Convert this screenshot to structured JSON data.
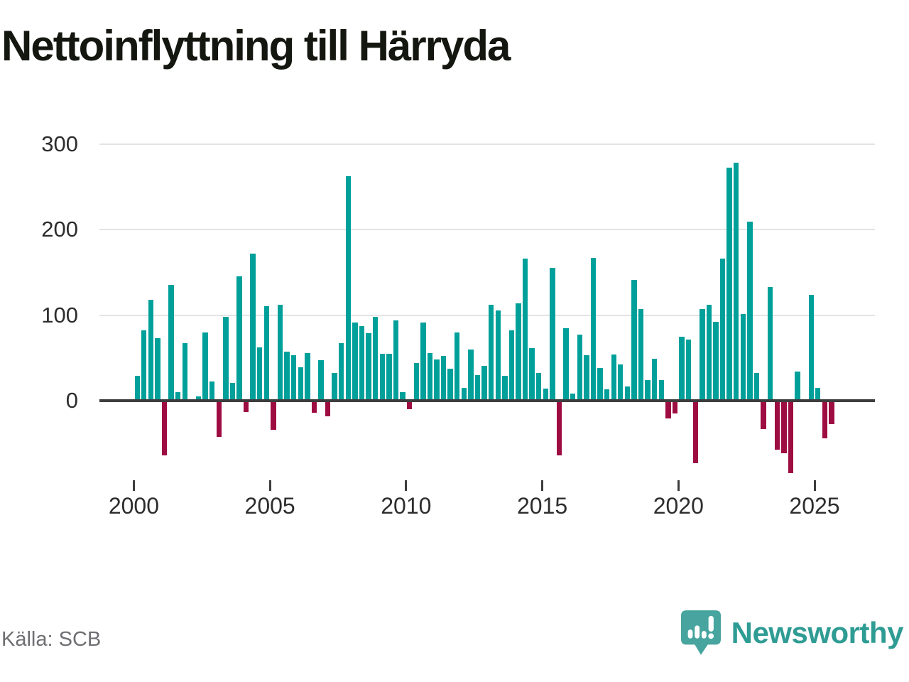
{
  "page": {
    "title": "Nettoinflyttning till Härryda"
  },
  "footer": {
    "source": "Källa: SCB",
    "brand": "Newsworthy"
  },
  "colors": {
    "positive": "#00a09a",
    "negative": "#9e0d41",
    "grid": "#e3e3e3",
    "axis": "#3d3d3d",
    "tick_text": "#2d2d2d",
    "title_text": "#14170f",
    "muted_text": "#6f6f73",
    "brand_teal": "#2f9c94",
    "logo_bg": "#47a49f"
  },
  "chart_data": {
    "type": "bar",
    "title": "Nettoinflyttning till Härryda",
    "xlabel": "",
    "ylabel": "",
    "unit": "personer per kvartal (nettoinflyttning)",
    "frequency": "quarterly",
    "start": "2000-Q1",
    "end": "2025-Q3",
    "y_ticks": [
      0,
      100,
      200,
      300
    ],
    "x_ticks": [
      2000,
      2005,
      2010,
      2015,
      2020,
      2025
    ],
    "ylim": [
      -100,
      310
    ],
    "grid": "horizontal",
    "legend": "none",
    "source": "SCB",
    "series": [
      {
        "name": "Nettoinflyttning",
        "values": [
          29,
          82,
          118,
          73,
          -64,
          135,
          10,
          67,
          0,
          5,
          80,
          22,
          -42,
          98,
          21,
          145,
          -13,
          172,
          62,
          110,
          -34,
          112,
          57,
          53,
          39,
          56,
          -14,
          47,
          -18,
          32,
          67,
          262,
          91,
          87,
          79,
          98,
          55,
          55,
          94,
          10,
          -10,
          44,
          91,
          56,
          48,
          52,
          37,
          80,
          15,
          60,
          30,
          41,
          112,
          105,
          29,
          82,
          114,
          166,
          61,
          32,
          14,
          155,
          -64,
          85,
          8,
          77,
          53,
          167,
          38,
          13,
          54,
          42,
          17,
          141,
          107,
          24,
          49,
          24,
          -21,
          -15,
          75,
          71,
          -73,
          107,
          112,
          92,
          166,
          272,
          278,
          101,
          209,
          32,
          -33,
          133,
          -57,
          -61,
          -85,
          34,
          0,
          124,
          15,
          -44,
          -27
        ]
      }
    ]
  }
}
